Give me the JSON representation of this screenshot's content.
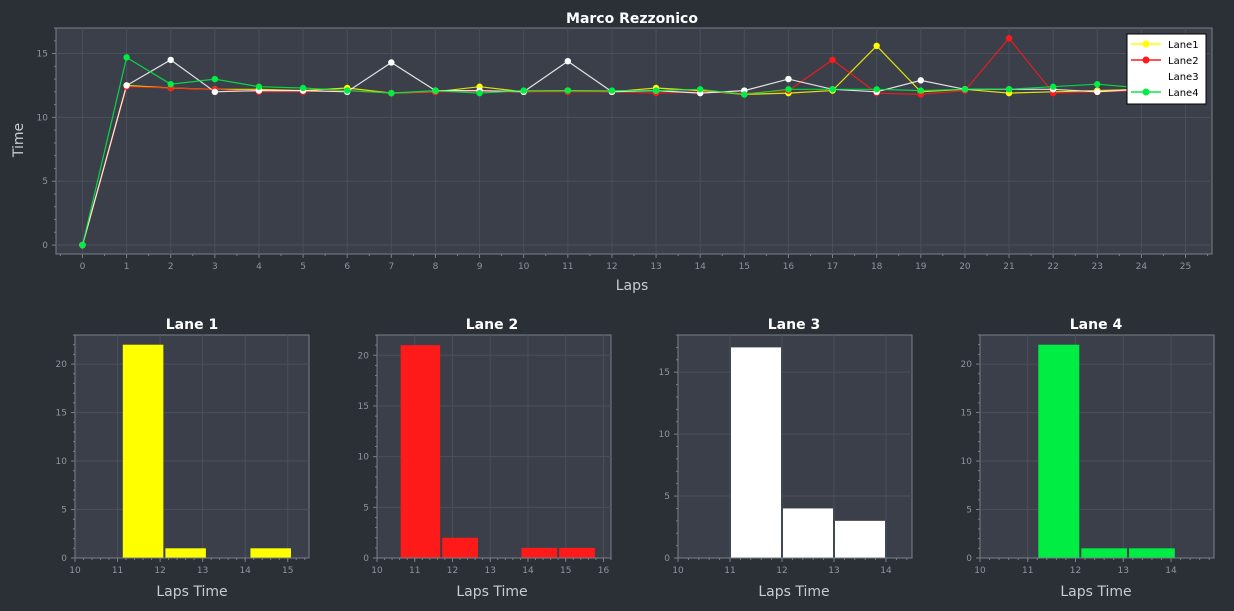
{
  "colors": {
    "background": "#2b2f36",
    "plot_bg": "#3a3f4a",
    "axis": "#7a808a",
    "grid": "#4a505b",
    "tick_text": "#8f959e",
    "label_text": "#c8ccd2",
    "title_text": "#ffffff",
    "lane1": "#ffff00",
    "lane2": "#ff1a1a",
    "lane3": "#ffffff",
    "lane4": "#00ee44",
    "legend_bg": "#ffffff",
    "legend_text": "#000000"
  },
  "chart_data": [
    {
      "type": "line",
      "title": "Marco Rezzonico",
      "xlabel": "Laps",
      "ylabel": "Time",
      "xlim": [
        -0.6,
        25.6
      ],
      "ylim": [
        -0.7,
        17
      ],
      "x_ticks": [
        0,
        1,
        2,
        3,
        4,
        5,
        6,
        7,
        8,
        9,
        10,
        11,
        12,
        13,
        14,
        15,
        16,
        17,
        18,
        19,
        20,
        21,
        22,
        23,
        24,
        25
      ],
      "y_ticks": [
        0,
        5,
        10,
        15
      ],
      "legend": "top-right",
      "series": [
        {
          "name": "Lane1",
          "color": "#ffff00",
          "x": [
            0,
            1,
            2,
            3,
            4,
            5,
            6,
            7,
            8,
            9,
            10,
            11,
            12,
            13,
            14,
            15,
            16,
            17,
            18,
            19,
            20,
            21,
            22,
            23,
            24
          ],
          "y": [
            0,
            12.5,
            12.3,
            12.2,
            12.2,
            12.1,
            12.3,
            11.9,
            12.0,
            12.4,
            12.0,
            12.1,
            12.0,
            12.3,
            12.1,
            11.8,
            11.9,
            12.1,
            15.6,
            12.0,
            12.2,
            11.9,
            12.0,
            12.1,
            12.2
          ]
        },
        {
          "name": "Lane2",
          "color": "#ff1a1a",
          "x": [
            0,
            1,
            2,
            3,
            4,
            5,
            6,
            7,
            8,
            9,
            10,
            11,
            12,
            13,
            14,
            15,
            16,
            17,
            18,
            19,
            20,
            21,
            22,
            23,
            24
          ],
          "y": [
            0,
            12.4,
            12.3,
            12.2,
            12.0,
            12.0,
            12.1,
            11.9,
            12.0,
            12.0,
            12.0,
            12.0,
            12.0,
            11.9,
            12.0,
            11.9,
            12.1,
            14.5,
            11.9,
            11.8,
            12.1,
            16.2,
            11.9,
            12.0,
            12.1
          ]
        },
        {
          "name": "Lane3",
          "color": "#ffffff",
          "x": [
            0,
            1,
            2,
            3,
            4,
            5,
            6,
            7,
            8,
            9,
            10,
            11,
            12,
            13,
            14,
            15,
            16,
            17,
            18,
            19,
            20,
            21,
            22,
            23,
            24
          ],
          "y": [
            0,
            12.5,
            14.5,
            12.0,
            12.1,
            12.1,
            12.0,
            14.3,
            12.1,
            12.1,
            12.0,
            14.4,
            12.0,
            12.1,
            11.9,
            12.1,
            13.0,
            12.2,
            12.0,
            12.9,
            12.2,
            12.2,
            12.2,
            12.0,
            12.2
          ]
        },
        {
          "name": "Lane4",
          "color": "#00ee44",
          "x": [
            0,
            1,
            2,
            3,
            4,
            5,
            6,
            7,
            8,
            9,
            10,
            11,
            12,
            13,
            14,
            15,
            16,
            17,
            18,
            19,
            20,
            21,
            22,
            23,
            24
          ],
          "y": [
            0,
            14.7,
            12.6,
            13.0,
            12.4,
            12.3,
            12.1,
            11.9,
            12.1,
            11.9,
            12.1,
            12.1,
            12.1,
            12.1,
            12.2,
            11.8,
            12.2,
            12.2,
            12.2,
            12.1,
            12.2,
            12.2,
            12.4,
            12.6,
            12.3
          ]
        }
      ]
    },
    {
      "type": "bar",
      "title": "Lane 1",
      "xlabel": "Laps Time",
      "color": "#ffff00",
      "xlim": [
        10,
        15.5
      ],
      "ylim": [
        0,
        23
      ],
      "x_ticks": [
        10,
        11,
        12,
        13,
        14,
        15
      ],
      "y_ticks": [
        0,
        5,
        10,
        15,
        20
      ],
      "bins": [
        {
          "start": 11.1,
          "end": 12.1,
          "count": 22
        },
        {
          "start": 12.1,
          "end": 13.1,
          "count": 1
        },
        {
          "start": 14.1,
          "end": 15.1,
          "count": 1
        }
      ]
    },
    {
      "type": "bar",
      "title": "Lane 2",
      "xlabel": "Laps Time",
      "color": "#ff1a1a",
      "xlim": [
        10,
        16.2
      ],
      "ylim": [
        0,
        22
      ],
      "x_ticks": [
        10,
        11,
        12,
        13,
        14,
        15,
        16
      ],
      "y_ticks": [
        0,
        5,
        10,
        15,
        20
      ],
      "bins": [
        {
          "start": 10.6,
          "end": 11.7,
          "count": 21
        },
        {
          "start": 11.7,
          "end": 12.7,
          "count": 2
        },
        {
          "start": 13.8,
          "end": 14.8,
          "count": 1
        },
        {
          "start": 14.8,
          "end": 15.8,
          "count": 1
        }
      ]
    },
    {
      "type": "bar",
      "title": "Lane 3",
      "xlabel": "Laps Time",
      "color": "#ffffff",
      "xlim": [
        10,
        14.5
      ],
      "ylim": [
        0,
        18
      ],
      "x_ticks": [
        10,
        11,
        12,
        13,
        14
      ],
      "y_ticks": [
        0,
        5,
        10,
        15
      ],
      "bins": [
        {
          "start": 11.0,
          "end": 12.0,
          "count": 17
        },
        {
          "start": 12.0,
          "end": 13.0,
          "count": 4
        },
        {
          "start": 13.0,
          "end": 14.0,
          "count": 3
        }
      ]
    },
    {
      "type": "bar",
      "title": "Lane 4",
      "xlabel": "Laps Time",
      "color": "#00ee44",
      "xlim": [
        10,
        14.9
      ],
      "ylim": [
        0,
        23
      ],
      "x_ticks": [
        10,
        11,
        12,
        13,
        14
      ],
      "y_ticks": [
        0,
        5,
        10,
        15,
        20
      ],
      "bins": [
        {
          "start": 11.2,
          "end": 12.1,
          "count": 22
        },
        {
          "start": 12.1,
          "end": 13.1,
          "count": 1
        },
        {
          "start": 13.1,
          "end": 14.1,
          "count": 1
        }
      ]
    }
  ]
}
